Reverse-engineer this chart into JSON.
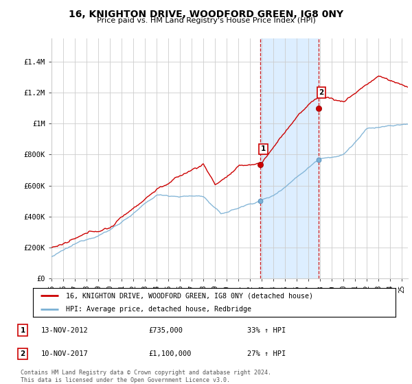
{
  "title": "16, KNIGHTON DRIVE, WOODFORD GREEN, IG8 0NY",
  "subtitle": "Price paid vs. HM Land Registry's House Price Index (HPI)",
  "ylabel_ticks": [
    "£0",
    "£200K",
    "£400K",
    "£600K",
    "£800K",
    "£1M",
    "£1.2M",
    "£1.4M"
  ],
  "ylabel_values": [
    0,
    200000,
    400000,
    600000,
    800000,
    1000000,
    1200000,
    1400000
  ],
  "ylim": [
    0,
    1550000
  ],
  "xlim_start": 1995.0,
  "xlim_end": 2025.5,
  "sale1_x": 2012.87,
  "sale1_y": 735000,
  "sale2_x": 2017.86,
  "sale2_y": 1100000,
  "sale1_label": "1",
  "sale2_label": "2",
  "sale1_date": "13-NOV-2012",
  "sale1_price": "£735,000",
  "sale1_hpi": "33% ↑ HPI",
  "sale2_date": "10-NOV-2017",
  "sale2_price": "£1,100,000",
  "sale2_hpi": "27% ↑ HPI",
  "legend_line1": "16, KNIGHTON DRIVE, WOODFORD GREEN, IG8 0NY (detached house)",
  "legend_line2": "HPI: Average price, detached house, Redbridge",
  "footer": "Contains HM Land Registry data © Crown copyright and database right 2024.\nThis data is licensed under the Open Government Licence v3.0.",
  "line_color_red": "#cc0000",
  "line_color_blue": "#7ab0d4",
  "shading_color": "#ddeeff",
  "grid_color": "#cccccc",
  "background_color": "#ffffff",
  "vline_color": "#cc0000",
  "box_color": "#cc0000"
}
